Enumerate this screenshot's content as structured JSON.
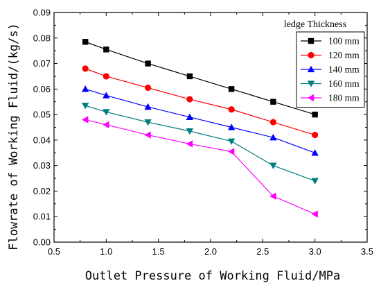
{
  "chart_data": {
    "type": "line",
    "title": "",
    "xlabel": "Outlet Pressure of Working Fluid/MPa",
    "ylabel": "Flowrate of Working Fluid/(kg/s)",
    "xlim": [
      0.5,
      3.5
    ],
    "ylim": [
      0.0,
      0.09
    ],
    "xticks": [
      "0.5",
      "1.0",
      "1.5",
      "2.0",
      "2.5",
      "3.0",
      "3.5"
    ],
    "yticks": [
      "0.00",
      "0.01",
      "0.02",
      "0.03",
      "0.04",
      "0.05",
      "0.06",
      "0.07",
      "0.08",
      "0.09"
    ],
    "grid": false,
    "legend_title": "ledge Thickness",
    "legend_position": "top-right",
    "x": [
      0.8,
      1.0,
      1.4,
      1.8,
      2.2,
      2.6,
      3.0
    ],
    "series": [
      {
        "name": "100 mm",
        "color": "#000000",
        "marker": "square",
        "values": [
          0.0785,
          0.0755,
          0.07,
          0.065,
          0.06,
          0.055,
          0.05
        ]
      },
      {
        "name": "120 mm",
        "color": "#ff0000",
        "marker": "circle",
        "values": [
          0.068,
          0.065,
          0.0605,
          0.056,
          0.052,
          0.047,
          0.042
        ]
      },
      {
        "name": "140 mm",
        "color": "#0000ff",
        "marker": "triangle-up",
        "values": [
          0.06,
          0.0575,
          0.053,
          0.049,
          0.045,
          0.041,
          0.035
        ]
      },
      {
        "name": "160 mm",
        "color": "#007f7f",
        "marker": "triangle-down",
        "values": [
          0.0535,
          0.051,
          0.047,
          0.0435,
          0.0395,
          0.03,
          0.024
        ]
      },
      {
        "name": "180 mm",
        "color": "#ff00ff",
        "marker": "triangle-left",
        "values": [
          0.048,
          0.046,
          0.042,
          0.0385,
          0.0355,
          0.018,
          0.011
        ]
      }
    ]
  }
}
